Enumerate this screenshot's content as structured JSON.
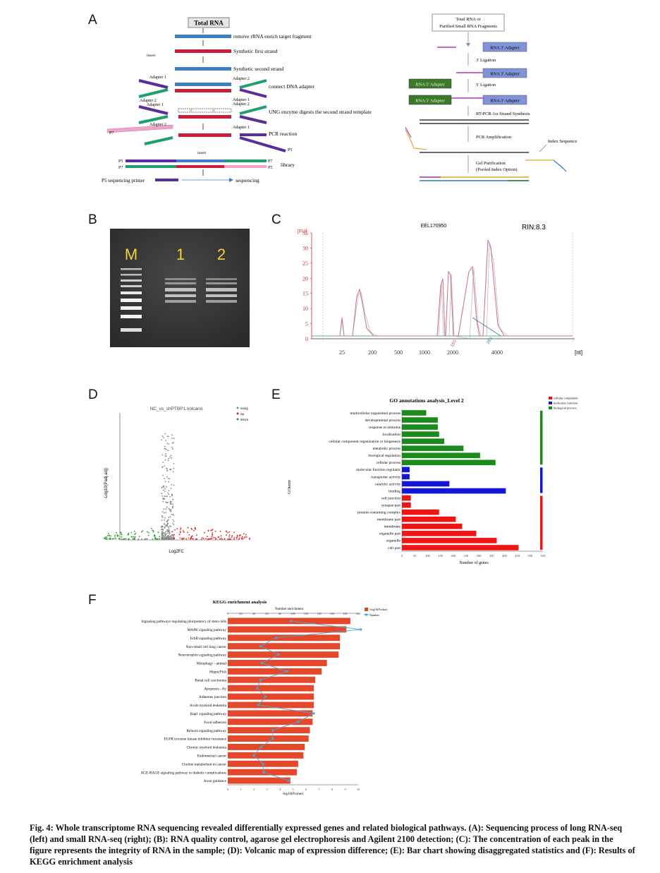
{
  "panels": {
    "a": "A",
    "b": "B",
    "c": "C",
    "d": "D",
    "e": "E",
    "f": "F"
  },
  "panelA_left": {
    "total_rna": "Total RNA",
    "steps": [
      "remove rRNA enrich target fragment",
      "Synthetic first strand",
      "Synthetic second strand",
      "connect DNA adapter",
      "UNG enzyme digests the second strand template",
      "PCR reaction",
      "library",
      "sequencing"
    ],
    "labels": {
      "adapter1": "Adapter 1",
      "adapter2": "Adapter 2",
      "p7": "P7",
      "p5": "P5",
      "primer": "P5 sequencing primer",
      "small1": "insert",
      "small2": "insert"
    }
  },
  "panelA_right": {
    "top": "Total RNA or\nPurified Small RNA Fragments",
    "adapter3": "RNA 3' Adapter",
    "adapter5": "RNA 5' Adapter",
    "ligation3": "3' Ligation",
    "ligation5": "5' Ligation",
    "rtpcr": "RT-PCR-1st Strand Synthesis",
    "pcr": "PCR Amplification",
    "index": "Index Sequence",
    "gel": "Gel Purification",
    "pooled": "(Pooled Index Option)"
  },
  "panelB": {
    "lanes": [
      "M",
      "1",
      "2"
    ]
  },
  "panelC": {
    "title": "EEL170950",
    "rin": "RIN:8.3",
    "yunit": "[FU]",
    "xunit": "[nt]",
    "yticks": [
      "35",
      "30",
      "25",
      "20",
      "15",
      "10",
      "5",
      "0"
    ],
    "xticks": [
      "25",
      "200",
      "500",
      "1000",
      "2000",
      "4000"
    ]
  },
  "chart_data": [
    {
      "type": "scatter",
      "title": "NC_vs_shPTBP1.volcano",
      "xlabel": "Log2FC",
      "ylabel": "-Log10(Padj.adj)",
      "legend": [
        "nosig",
        "up",
        "down"
      ],
      "colors": {
        "nosig": "#888888",
        "up": "#e02020",
        "down": "#2e9a2e"
      }
    },
    {
      "type": "bar",
      "title": "GO annotations analysis_Level 2",
      "xlabel": "Number of genes",
      "ylabel": "GOterm",
      "xlim": [
        0,
        550
      ],
      "xticks": [
        "0",
        "50",
        "100",
        "150",
        "200",
        "250",
        "300",
        "350",
        "400",
        "450",
        "500",
        "550"
      ],
      "legend": [
        "cellular component",
        "molecular function",
        "biological process"
      ],
      "categories": [
        "multicellular organismal process",
        "developmental process",
        "response to stimulus",
        "localization",
        "cellular component organization or biogenesis",
        "metabolic process",
        "biological regulation",
        "cellular process",
        "molecular function regulator",
        "transporter activity",
        "catalytic activity",
        "binding",
        "cell junction",
        "synapse part",
        "protein-containing complex",
        "membrane part",
        "membrane",
        "organelle part",
        "organelle",
        "cell part"
      ],
      "values": [
        95,
        140,
        140,
        145,
        165,
        240,
        305,
        365,
        30,
        30,
        185,
        405,
        35,
        35,
        145,
        210,
        235,
        290,
        370,
        455
      ],
      "groups": [
        "BP",
        "BP",
        "BP",
        "BP",
        "BP",
        "BP",
        "BP",
        "BP",
        "MF",
        "MF",
        "MF",
        "MF",
        "CC",
        "CC",
        "CC",
        "CC",
        "CC",
        "CC",
        "CC",
        "CC"
      ],
      "colors": {
        "BP": "#1a8a1a",
        "MF": "#1515d8",
        "CC": "#ee1515"
      }
    },
    {
      "type": "bar",
      "title": "KEGG enrichment analysis",
      "xlabel": "-log10(Pvalue)",
      "x2label": "Number enrichment",
      "legend": [
        "-log10(Pvalue)",
        "Number"
      ],
      "xlim": [
        0,
        10
      ],
      "xticks": [
        "0",
        "1",
        "2",
        "3",
        "4",
        "5",
        "6",
        "7",
        "8",
        "9",
        "10"
      ],
      "x2ticks": [
        "0",
        "20",
        "40",
        "60",
        "80",
        "100",
        "120",
        "140",
        "160",
        "180",
        "200"
      ],
      "categories": [
        "Signaling pathways regulating pluripotency of stem cells",
        "MAPK signaling pathway",
        "ErbB signaling pathway",
        "Non-small cell lung cancer",
        "Neurotrophin signaling pathway",
        "Mitophagy - animal",
        "Hippo/Fish",
        "Renal cell carcinoma",
        "Apoptosis - fly",
        "Adherens junction",
        "Acute myeloid leukemia",
        "Rap1 signaling pathway",
        "Focal adhesion",
        "Relaxin signaling pathway",
        "EGFR tyrosine kinase inhibitor resistance",
        "Chronic myeloid leukemia",
        "Endometrial cancer",
        "Choline metabolism in cancer",
        "AGE-RAGE signaling pathway in diabetic complications",
        "Axon guidance"
      ],
      "values": [
        9.4,
        9.1,
        8.6,
        8.6,
        8.5,
        7.6,
        7.2,
        6.7,
        6.6,
        6.6,
        6.6,
        6.5,
        6.5,
        6.3,
        6.2,
        5.9,
        5.8,
        5.4,
        5.3,
        4.8
      ],
      "numbers": [
        97,
        204,
        74,
        50,
        78,
        52,
        91,
        50,
        45,
        58,
        47,
        132,
        108,
        69,
        69,
        51,
        40,
        54,
        55,
        93
      ],
      "colors": {
        "bar": "#e5472b",
        "line": "#46a8d8"
      }
    }
  ],
  "caption": "Fig. 4: Whole transcriptome RNA sequencing revealed differentially expressed genes and related biological pathways. (A): Sequencing process of long RNA-seq (left) and small RNA-seq (right); (B): RNA quality control, agarose gel electrophoresis and Agilent 2100 detection; (C): The concentration of each peak in the figure represents the integrity of RNA in the sample; (D): Volcanic map of expression difference; (E): Bar chart showing disaggregated statistics and (F): Results of KEGG enrichment analysis"
}
